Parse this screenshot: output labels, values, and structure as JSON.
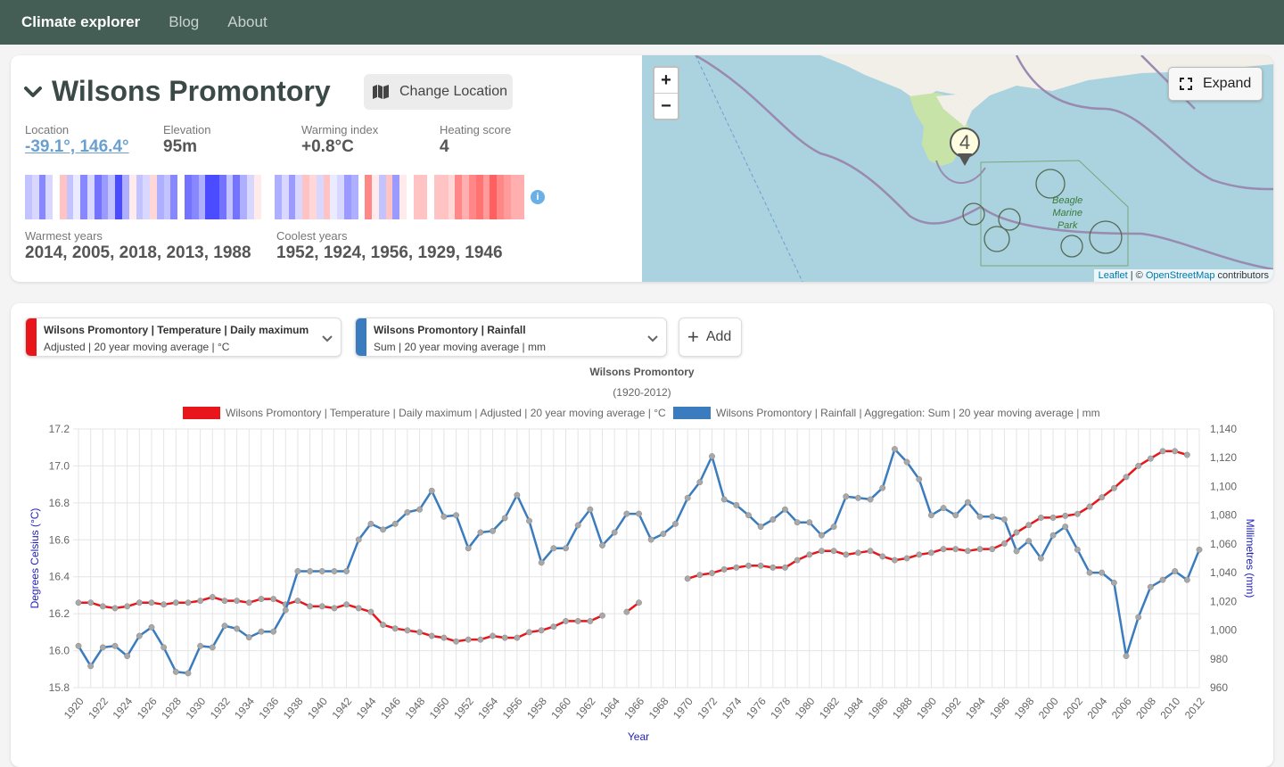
{
  "nav": {
    "brand": "Climate explorer",
    "links": [
      "Blog",
      "About"
    ]
  },
  "location": {
    "title": "Wilsons Promontory",
    "change_label": "Change Location",
    "stats": [
      {
        "label": "Location",
        "value": "-39.1°, 146.4°"
      },
      {
        "label": "Elevation",
        "value": "95m"
      },
      {
        "label": "Warming index",
        "value": "+0.8°C"
      },
      {
        "label": "Heating score",
        "value": "4"
      }
    ],
    "warmest_label": "Warmest years",
    "warmest_value": "2014, 2005, 2018, 2013, 1988",
    "coolest_label": "Coolest years",
    "coolest_value": "1952, 1924, 1956, 1929, 1946",
    "info_icon": "i",
    "stripes": [
      -0.3,
      -0.2,
      -0.6,
      -0.2,
      0.0,
      0.3,
      -0.3,
      -0.1,
      -0.6,
      -0.2,
      -0.7,
      -0.5,
      -0.3,
      -0.9,
      -0.4,
      0.1,
      -0.3,
      -0.2,
      0.2,
      -0.4,
      -0.3,
      -0.6,
      0.0,
      -0.7,
      -0.6,
      -0.4,
      -0.9,
      -0.9,
      -0.7,
      -0.3,
      -0.7,
      -0.4,
      -0.2,
      0.1,
      0.0,
      0.0,
      -0.4,
      -0.2,
      -0.5,
      -0.2,
      0.3,
      0.2,
      -0.2,
      0.3,
      -0.1,
      -0.2,
      -0.5,
      -0.4,
      0.0,
      0.6,
      0.1,
      -0.3,
      0.3,
      -0.5,
      0.1,
      0.0,
      0.3,
      0.3,
      0.0,
      0.3,
      0.3,
      0.2,
      0.6,
      0.4,
      0.6,
      0.7,
      0.5,
      0.8,
      0.6,
      0.5,
      0.4,
      0.4
    ]
  },
  "map": {
    "zoom_in": "+",
    "zoom_out": "−",
    "expand_label": "Expand",
    "marker_label": "4",
    "park_label": [
      "Beagle",
      "Marine",
      "Park"
    ],
    "attribution_leaflet": "Leaflet",
    "attribution_sep": " | © ",
    "attribution_osm": "OpenStreetMap",
    "attribution_rest": " contributors",
    "colors": {
      "sea": "#aad3df",
      "land": "#f2efe9",
      "park": "#c8e3a8"
    }
  },
  "selectors": [
    {
      "line1": "Wilsons Promontory | Temperature | Daily maximum",
      "line2": "Adjusted | 20 year moving average | °C",
      "color": "#e8161b"
    },
    {
      "line1": "Wilsons Promontory | Rainfall",
      "line2": "Sum | 20 year moving average | mm",
      "color": "#3a7cbd"
    }
  ],
  "add_label": "Add",
  "chart_data": {
    "type": "line",
    "title": "Wilsons Promontory",
    "subtitle": "(1920-2012)",
    "xlabel": "Year",
    "ylabel_left": "Degrees Celsius (°C)",
    "ylabel_right": "Millimetres (mm)",
    "xlim": [
      1920,
      2012
    ],
    "ylim_left": [
      15.8,
      17.2
    ],
    "ylim_right": [
      960,
      1140
    ],
    "y_ticks_left": [
      "15.8",
      "16.0",
      "16.2",
      "16.4",
      "16.6",
      "16.8",
      "17.0",
      "17.2"
    ],
    "y_ticks_right": [
      "960",
      "980",
      "1,000",
      "1,020",
      "1,040",
      "1,060",
      "1,080",
      "1,100",
      "1,120",
      "1,140"
    ],
    "x_ticks": [
      "1920",
      "1922",
      "1924",
      "1926",
      "1928",
      "1930",
      "1932",
      "1934",
      "1936",
      "1938",
      "1940",
      "1942",
      "1944",
      "1946",
      "1948",
      "1950",
      "1952",
      "1954",
      "1956",
      "1958",
      "1960",
      "1962",
      "1964",
      "1966",
      "1968",
      "1970",
      "1972",
      "1974",
      "1976",
      "1978",
      "1980",
      "1982",
      "1984",
      "1986",
      "1988",
      "1990",
      "1992",
      "1994",
      "1996",
      "1998",
      "2000",
      "2002",
      "2004",
      "2006",
      "2008",
      "2010",
      "2012"
    ],
    "legend_placement": "top",
    "series": [
      {
        "name": "Wilsons Promontory | Temperature | Daily maximum | Adjusted | 20 year moving average | °C",
        "axis": "left",
        "color": "#e8161b",
        "x": [
          1920,
          1921,
          1922,
          1923,
          1924,
          1925,
          1926,
          1927,
          1928,
          1929,
          1930,
          1931,
          1932,
          1933,
          1934,
          1935,
          1936,
          1937,
          1938,
          1939,
          1940,
          1941,
          1942,
          1943,
          1944,
          1945,
          1946,
          1947,
          1948,
          1949,
          1950,
          1951,
          1952,
          1953,
          1954,
          1955,
          1956,
          1957,
          1958,
          1959,
          1960,
          1961,
          1962,
          1963,
          1964,
          1965,
          1966,
          1967,
          1968,
          1969,
          1970,
          1971,
          1972,
          1973,
          1974,
          1975,
          1976,
          1977,
          1978,
          1979,
          1980,
          1981,
          1982,
          1983,
          1984,
          1985,
          1986,
          1987,
          1988,
          1989,
          1990,
          1991,
          1992,
          1993,
          1994,
          1995,
          1996,
          1997,
          1998,
          1999,
          2000,
          2001,
          2002,
          2003,
          2004,
          2005,
          2006,
          2007,
          2008,
          2009,
          2010,
          2011
        ],
        "values": [
          16.26,
          16.26,
          16.24,
          16.23,
          16.24,
          16.26,
          16.26,
          16.25,
          16.26,
          16.26,
          16.27,
          16.29,
          16.27,
          16.27,
          16.26,
          16.28,
          16.28,
          16.25,
          16.27,
          16.24,
          16.24,
          16.23,
          16.25,
          16.23,
          16.21,
          16.14,
          16.12,
          16.11,
          16.1,
          16.08,
          16.07,
          16.05,
          16.06,
          16.06,
          16.08,
          16.07,
          16.07,
          16.1,
          16.11,
          16.13,
          16.16,
          16.16,
          16.16,
          16.19,
          null,
          16.21,
          16.26,
          null,
          null,
          null,
          16.39,
          16.41,
          16.42,
          16.44,
          16.45,
          16.46,
          16.46,
          16.45,
          16.45,
          16.49,
          16.52,
          16.54,
          16.54,
          16.52,
          16.53,
          16.54,
          16.51,
          16.49,
          16.5,
          16.52,
          16.53,
          16.55,
          16.55,
          16.54,
          16.55,
          16.55,
          16.58,
          16.64,
          16.68,
          16.72,
          16.72,
          16.73,
          16.74,
          16.78,
          16.83,
          16.88,
          16.94,
          17.0,
          17.04,
          17.08,
          17.08,
          17.06
        ]
      },
      {
        "name": "Wilsons Promontory | Rainfall | Aggregation: Sum | 20 year moving average | mm",
        "axis": "right",
        "color": "#3a7cbd",
        "x": [
          1920,
          1921,
          1922,
          1923,
          1924,
          1925,
          1926,
          1927,
          1928,
          1929,
          1930,
          1931,
          1932,
          1933,
          1934,
          1935,
          1936,
          1937,
          1938,
          1939,
          1940,
          1941,
          1942,
          1943,
          1944,
          1945,
          1946,
          1947,
          1948,
          1949,
          1950,
          1951,
          1952,
          1953,
          1954,
          1955,
          1956,
          1957,
          1958,
          1959,
          1960,
          1961,
          1962,
          1963,
          1964,
          1965,
          1966,
          1967,
          1968,
          1969,
          1970,
          1971,
          1972,
          1973,
          1974,
          1975,
          1976,
          1977,
          1978,
          1979,
          1980,
          1981,
          1982,
          1983,
          1984,
          1985,
          1986,
          1987,
          1988,
          1989,
          1990,
          1991,
          1992,
          1993,
          1994,
          1995,
          1996,
          1997,
          1998,
          1999,
          2000,
          2001,
          2002,
          2003,
          2004,
          2005,
          2006,
          2007,
          2008,
          2009,
          2010,
          2011,
          2012
        ],
        "values": [
          989,
          975,
          988,
          989,
          982,
          996,
          1002,
          988,
          971,
          970,
          989,
          988,
          1003,
          1001,
          995,
          999,
          999,
          1014,
          1041,
          1041,
          1041,
          1041,
          1041,
          1063,
          1074,
          1070,
          1074,
          1082,
          1084,
          1097,
          1079,
          1080,
          1057,
          1068,
          1069,
          1078,
          1094,
          1076,
          1047,
          1057,
          1057,
          1073,
          1084,
          1059,
          1068,
          1081,
          1081,
          1063,
          1067,
          1074,
          1092,
          1103,
          1121,
          1091,
          1087,
          1080,
          1072,
          1077,
          1084,
          1075,
          1075,
          1066,
          1072,
          1093,
          1092,
          1091,
          1099,
          1126,
          1117,
          1105,
          1080,
          1085,
          1080,
          1089,
          1079,
          1079,
          1077,
          1055,
          1062,
          1050,
          1066,
          1072,
          1056,
          1040,
          1040,
          1033,
          982,
          1009,
          1030,
          1035,
          1041,
          1035,
          1056
        ]
      }
    ]
  }
}
